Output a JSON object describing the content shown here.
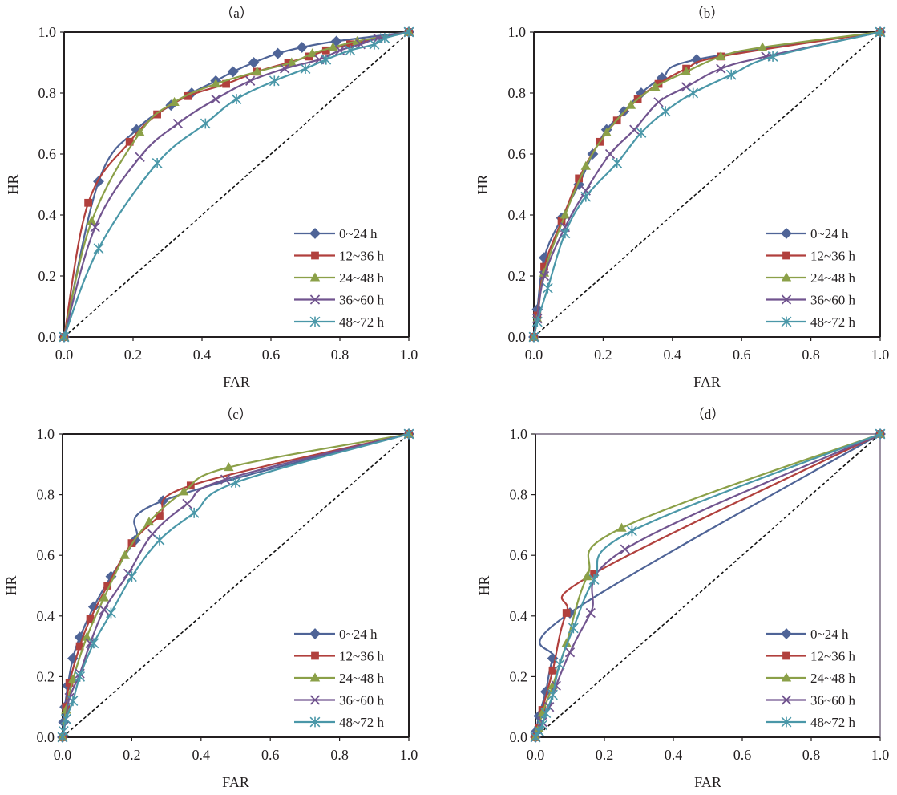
{
  "chart_data": [
    {
      "type": "line",
      "title": "（a）",
      "xlabel": "FAR",
      "ylabel": "HR",
      "xlim": [
        0,
        1
      ],
      "ylim": [
        0,
        1
      ],
      "xticks": [
        "0.0",
        "0.2",
        "0.4",
        "0.6",
        "0.8",
        "1.0"
      ],
      "yticks": [
        "0.0",
        "0.2",
        "0.4",
        "0.6",
        "0.8",
        "1.0"
      ],
      "grid": false,
      "legend_position": "bottom-right",
      "reference_line": "diagonal-dashed",
      "series": [
        {
          "name": "0~24 h",
          "marker": "diamond",
          "color": "#4f6497",
          "x": [
            0,
            0.1,
            0.21,
            0.31,
            0.37,
            0.44,
            0.49,
            0.55,
            0.62,
            0.69,
            0.79,
            1
          ],
          "y": [
            0,
            0.51,
            0.68,
            0.76,
            0.8,
            0.84,
            0.87,
            0.9,
            0.93,
            0.95,
            0.97,
            1
          ]
        },
        {
          "name": "12~36 h",
          "marker": "square",
          "color": "#b1403d",
          "x": [
            0,
            0.07,
            0.19,
            0.27,
            0.36,
            0.47,
            0.56,
            0.65,
            0.71,
            0.76,
            0.83,
            1
          ],
          "y": [
            0,
            0.44,
            0.64,
            0.73,
            0.79,
            0.83,
            0.87,
            0.9,
            0.92,
            0.94,
            0.96,
            1
          ]
        },
        {
          "name": "24~48 h",
          "marker": "triangle",
          "color": "#8ba048",
          "x": [
            0,
            0.08,
            0.22,
            0.32,
            0.44,
            0.56,
            0.66,
            0.72,
            0.78,
            0.85,
            1
          ],
          "y": [
            0,
            0.38,
            0.67,
            0.77,
            0.83,
            0.87,
            0.9,
            0.93,
            0.95,
            0.97,
            1
          ]
        },
        {
          "name": "36~60 h",
          "marker": "x",
          "color": "#71548f",
          "x": [
            0,
            0.09,
            0.22,
            0.33,
            0.44,
            0.54,
            0.64,
            0.74,
            0.8,
            0.86,
            0.91,
            1
          ],
          "y": [
            0,
            0.36,
            0.59,
            0.7,
            0.78,
            0.84,
            0.88,
            0.91,
            0.94,
            0.96,
            0.98,
            1
          ]
        },
        {
          "name": "48~72 h",
          "marker": "asterisk",
          "color": "#4a97a8",
          "x": [
            0,
            0.1,
            0.27,
            0.41,
            0.5,
            0.61,
            0.7,
            0.76,
            0.83,
            0.9,
            0.93,
            1
          ],
          "y": [
            0,
            0.29,
            0.57,
            0.7,
            0.78,
            0.84,
            0.88,
            0.91,
            0.94,
            0.96,
            0.98,
            1
          ]
        }
      ]
    },
    {
      "type": "line",
      "title": "（b）",
      "xlabel": "FAR",
      "ylabel": "HR",
      "xlim": [
        0,
        1
      ],
      "ylim": [
        0,
        1
      ],
      "xticks": [
        "0.0",
        "0.2",
        "0.4",
        "0.6",
        "0.8",
        "1.0"
      ],
      "yticks": [
        "0.0",
        "0.2",
        "0.4",
        "0.6",
        "0.8",
        "1.0"
      ],
      "grid": false,
      "legend_position": "bottom-right",
      "reference_line": "diagonal-dashed",
      "series": [
        {
          "name": "0~24 h",
          "marker": "diamond",
          "color": "#4f6497",
          "x": [
            0,
            0.01,
            0.03,
            0.08,
            0.13,
            0.17,
            0.21,
            0.26,
            0.31,
            0.37,
            0.47,
            1
          ],
          "y": [
            0,
            0.09,
            0.26,
            0.39,
            0.5,
            0.6,
            0.68,
            0.74,
            0.8,
            0.85,
            0.91,
            1
          ]
        },
        {
          "name": "12~36 h",
          "marker": "square",
          "color": "#b1403d",
          "x": [
            0,
            0.01,
            0.03,
            0.08,
            0.13,
            0.19,
            0.24,
            0.3,
            0.36,
            0.44,
            0.54,
            1
          ],
          "y": [
            0,
            0.07,
            0.23,
            0.38,
            0.52,
            0.64,
            0.71,
            0.78,
            0.83,
            0.88,
            0.92,
            1
          ]
        },
        {
          "name": "24~48 h",
          "marker": "triangle",
          "color": "#8ba048",
          "x": [
            0,
            0.01,
            0.03,
            0.09,
            0.15,
            0.21,
            0.28,
            0.35,
            0.44,
            0.54,
            0.66,
            1
          ],
          "y": [
            0,
            0.06,
            0.21,
            0.4,
            0.56,
            0.67,
            0.76,
            0.82,
            0.87,
            0.92,
            0.95,
            1
          ]
        },
        {
          "name": "36~60 h",
          "marker": "x",
          "color": "#71548f",
          "x": [
            0,
            0.01,
            0.03,
            0.09,
            0.15,
            0.22,
            0.29,
            0.36,
            0.44,
            0.54,
            0.67,
            1
          ],
          "y": [
            0,
            0.06,
            0.2,
            0.36,
            0.48,
            0.6,
            0.68,
            0.77,
            0.82,
            0.88,
            0.92,
            1
          ]
        },
        {
          "name": "48~72 h",
          "marker": "asterisk",
          "color": "#4a97a8",
          "x": [
            0,
            0.01,
            0.04,
            0.09,
            0.15,
            0.24,
            0.31,
            0.38,
            0.46,
            0.57,
            0.69,
            1
          ],
          "y": [
            0,
            0.05,
            0.16,
            0.34,
            0.46,
            0.57,
            0.67,
            0.74,
            0.8,
            0.86,
            0.92,
            1
          ]
        }
      ]
    },
    {
      "type": "line",
      "title": "（c）",
      "xlabel": "FAR",
      "ylabel": "HR",
      "xlim": [
        0,
        1
      ],
      "ylim": [
        0,
        1
      ],
      "xticks": [
        "0.0",
        "0.2",
        "0.4",
        "0.6",
        "0.8",
        "1.0"
      ],
      "yticks": [
        "0.0",
        "0.2",
        "0.4",
        "0.6",
        "0.8",
        "1.0"
      ],
      "grid": false,
      "legend_position": "bottom-right",
      "reference_line": "diagonal-dashed",
      "series": [
        {
          "name": "0~24 h",
          "marker": "diamond",
          "color": "#4f6497",
          "x": [
            0,
            0.003,
            0.007,
            0.015,
            0.03,
            0.05,
            0.09,
            0.14,
            0.21,
            0.29,
            1
          ],
          "y": [
            0,
            0.05,
            0.1,
            0.17,
            0.26,
            0.33,
            0.43,
            0.53,
            0.65,
            0.78,
            1
          ]
        },
        {
          "name": "12~36 h",
          "marker": "square",
          "color": "#b1403d",
          "x": [
            0,
            0.01,
            0.02,
            0.05,
            0.08,
            0.13,
            0.2,
            0.28,
            0.37,
            1
          ],
          "y": [
            0,
            0.1,
            0.18,
            0.3,
            0.39,
            0.5,
            0.64,
            0.73,
            0.83,
            1
          ]
        },
        {
          "name": "24~48 h",
          "marker": "triangle",
          "color": "#8ba048",
          "x": [
            0,
            0.01,
            0.03,
            0.07,
            0.12,
            0.18,
            0.25,
            0.35,
            0.48,
            1
          ],
          "y": [
            0,
            0.09,
            0.19,
            0.33,
            0.46,
            0.6,
            0.71,
            0.81,
            0.89,
            1
          ]
        },
        {
          "name": "36~60 h",
          "marker": "x",
          "color": "#71548f",
          "x": [
            0,
            0.01,
            0.02,
            0.05,
            0.08,
            0.12,
            0.19,
            0.26,
            0.36,
            0.47,
            1
          ],
          "y": [
            0,
            0.06,
            0.13,
            0.21,
            0.31,
            0.42,
            0.54,
            0.67,
            0.77,
            0.85,
            1
          ]
        },
        {
          "name": "48~72 h",
          "marker": "asterisk",
          "color": "#4a97a8",
          "x": [
            0,
            0.003,
            0.01,
            0.03,
            0.05,
            0.09,
            0.14,
            0.2,
            0.28,
            0.38,
            0.5,
            1
          ],
          "y": [
            0,
            0.02,
            0.06,
            0.12,
            0.2,
            0.31,
            0.41,
            0.53,
            0.65,
            0.74,
            0.84,
            1
          ]
        }
      ]
    },
    {
      "type": "line",
      "title": "（d）",
      "xlabel": "FAR",
      "ylabel": "HR",
      "xlim": [
        0,
        1
      ],
      "ylim": [
        0,
        1
      ],
      "xticks": [
        "0.0",
        "0.2",
        "0.4",
        "0.6",
        "0.8",
        "1.0"
      ],
      "yticks": [
        "0.0",
        "0.2",
        "0.4",
        "0.6",
        "0.8",
        "1.0"
      ],
      "grid": false,
      "legend_position": "bottom-right",
      "reference_line": "diagonal-dashed",
      "series": [
        {
          "name": "0~24 h",
          "marker": "diamond",
          "color": "#4f6497",
          "x": [
            0,
            0.003,
            0.01,
            0.03,
            0.05,
            0.1,
            1
          ],
          "y": [
            0,
            0.02,
            0.07,
            0.15,
            0.26,
            0.41,
            1
          ]
        },
        {
          "name": "12~36 h",
          "marker": "square",
          "color": "#b1403d",
          "x": [
            0,
            0.01,
            0.02,
            0.05,
            0.09,
            0.17,
            1
          ],
          "y": [
            0,
            0.03,
            0.09,
            0.22,
            0.41,
            0.54,
            1
          ]
        },
        {
          "name": "24~48 h",
          "marker": "triangle",
          "color": "#8ba048",
          "x": [
            0,
            0.01,
            0.02,
            0.05,
            0.09,
            0.15,
            0.25,
            1
          ],
          "y": [
            0,
            0.03,
            0.08,
            0.17,
            0.31,
            0.53,
            0.69,
            1
          ]
        },
        {
          "name": "36~60 h",
          "marker": "x",
          "color": "#71548f",
          "x": [
            0,
            0.01,
            0.02,
            0.04,
            0.06,
            0.1,
            0.16,
            0.26,
            1
          ],
          "y": [
            0,
            0.02,
            0.05,
            0.1,
            0.17,
            0.28,
            0.41,
            0.62,
            1
          ]
        },
        {
          "name": "48~72 h",
          "marker": "asterisk",
          "color": "#4a97a8",
          "x": [
            0,
            0.01,
            0.02,
            0.03,
            0.05,
            0.07,
            0.11,
            0.17,
            0.28,
            1
          ],
          "y": [
            0,
            0.02,
            0.04,
            0.08,
            0.14,
            0.24,
            0.36,
            0.52,
            0.68,
            1
          ]
        }
      ]
    }
  ]
}
